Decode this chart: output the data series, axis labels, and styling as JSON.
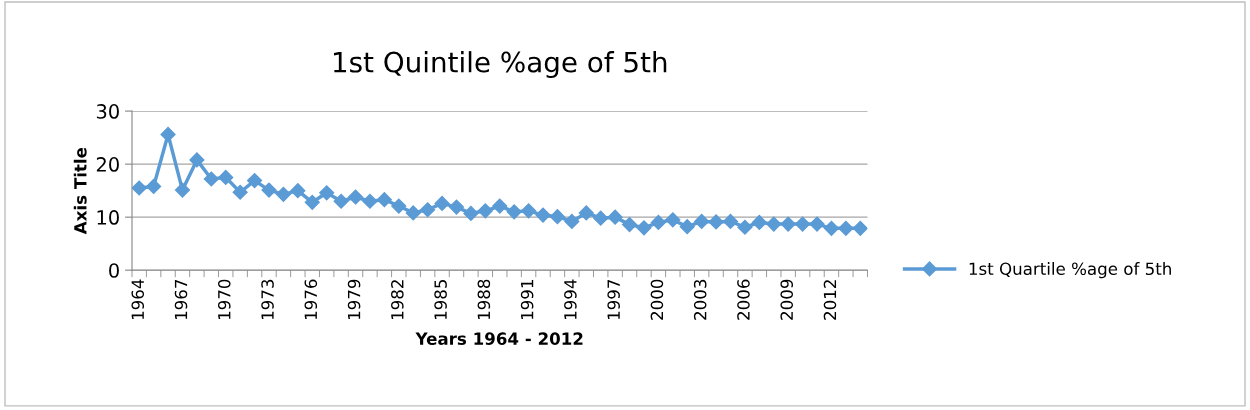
{
  "chart_data": {
    "type": "line",
    "title": "1st Quintile %age of 5th",
    "xlabel": "Years 1964 - 2012",
    "ylabel": "Axis Title",
    "categories": [
      "1964",
      null,
      null,
      "1967",
      null,
      null,
      "1970",
      null,
      null,
      "1973",
      null,
      null,
      "1976",
      null,
      null,
      "1979",
      null,
      null,
      "1982",
      null,
      null,
      "1985",
      null,
      null,
      "1988",
      null,
      null,
      "1991",
      null,
      null,
      "1994",
      null,
      null,
      "1997",
      null,
      null,
      "2000",
      null,
      null,
      "2003",
      null,
      null,
      "2006",
      null,
      null,
      "2009",
      null,
      null,
      "2012",
      null,
      null
    ],
    "series": [
      {
        "name": "1st Quartile %age of 5th",
        "color": "#5b9bd5",
        "values": [
          15.5,
          15.8,
          25.6,
          15.1,
          20.8,
          17.2,
          17.5,
          14.7,
          16.9,
          15.1,
          14.3,
          15.0,
          12.8,
          14.6,
          13.0,
          13.8,
          13.0,
          13.3,
          12.1,
          10.8,
          11.4,
          12.6,
          11.9,
          10.7,
          11.2,
          12.1,
          11.0,
          11.2,
          10.4,
          10.1,
          9.2,
          10.8,
          9.8,
          10.0,
          8.6,
          8.0,
          9.0,
          9.5,
          8.2,
          9.2,
          9.1,
          9.2,
          8.1,
          9.0,
          8.7,
          8.7,
          8.7,
          8.7,
          7.9,
          7.9,
          7.9
        ]
      }
    ],
    "ylim": [
      0,
      30
    ],
    "yticks": [
      0,
      10,
      20,
      30
    ],
    "grid": "y",
    "legend": "right",
    "marker": "diamond",
    "line_style": "solid"
  }
}
